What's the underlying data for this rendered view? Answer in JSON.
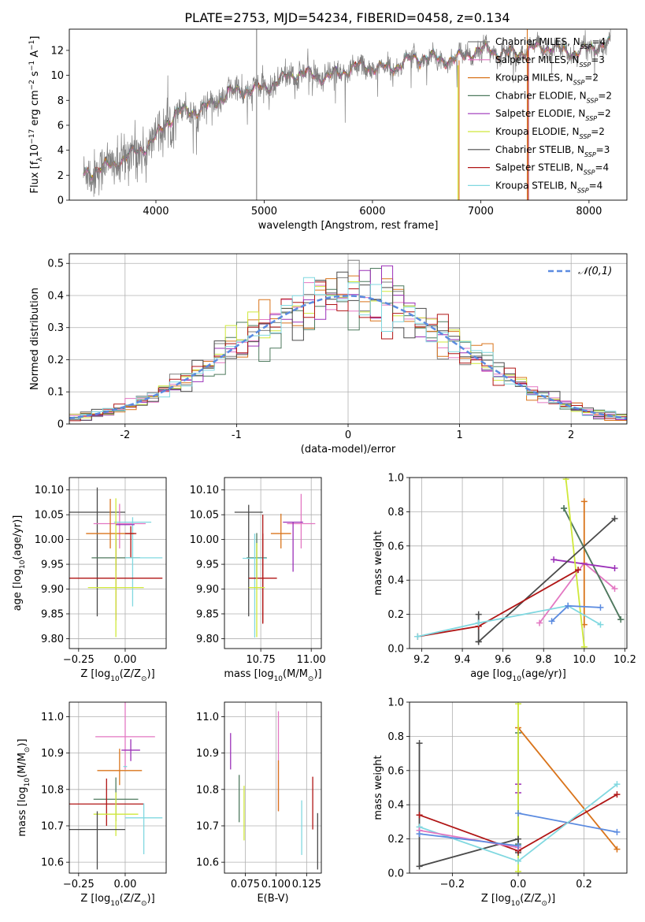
{
  "figure": {
    "title": "PLATE=2753, MJD=54234, FIBERID=0458, z=0.134"
  },
  "models": [
    {
      "name": "Chabrier MILES",
      "nssp": "4",
      "color": "#7f7f7f"
    },
    {
      "name": "Salpeter MILES",
      "nssp": "3",
      "color": "#e377c2"
    },
    {
      "name": "Kroupa MILES",
      "nssp": "2",
      "color": "#d9741b"
    },
    {
      "name": "Chabrier ELODIE",
      "nssp": "2",
      "color": "#4e7a5e"
    },
    {
      "name": "Salpeter ELODIE",
      "nssp": "2",
      "color": "#9b30b8"
    },
    {
      "name": "Kroupa ELODIE",
      "nssp": "2",
      "color": "#cfe83a"
    },
    {
      "name": "Chabrier STELIB",
      "nssp": "3",
      "color": "#4a4a4a"
    },
    {
      "name": "Salpeter STELIB",
      "nssp": "4",
      "color": "#b01515"
    },
    {
      "name": "Kroupa STELIB",
      "nssp": "4",
      "color": "#80d8e0"
    }
  ],
  "nssp_sub": "SSP",
  "chart_data": [
    {
      "id": "spectrum",
      "type": "line",
      "xlabel": "wavelength [Angstrom, rest frame]",
      "ylabel_parts": {
        "pre": "Flux [f",
        "sub": "λ",
        "mid": "10",
        "sup1": "−17",
        "mid2": " erg cm",
        "sup2": "−2",
        "mid3": " s",
        "sup3": "−1",
        "mid4": " A",
        "sup4": "−1",
        "post": "]"
      },
      "xlim": [
        3200,
        8350
      ],
      "ylim": [
        0,
        13.7
      ],
      "xticks": [
        4000,
        5000,
        6000,
        7000,
        8000
      ],
      "yticks": [
        0,
        2,
        4,
        6,
        8,
        10,
        12
      ],
      "spectrum_range": [
        3330,
        8200
      ],
      "continuum_points": [
        [
          3330,
          2.3
        ],
        [
          3600,
          2.5
        ],
        [
          3800,
          4.0
        ],
        [
          4000,
          5.0
        ],
        [
          4200,
          6.8
        ],
        [
          4500,
          7.8
        ],
        [
          4800,
          8.6
        ],
        [
          5000,
          9.3
        ],
        [
          5200,
          9.7
        ],
        [
          5500,
          10.1
        ],
        [
          5800,
          10.3
        ],
        [
          6100,
          10.8
        ],
        [
          6400,
          11.1
        ],
        [
          6700,
          11.5
        ],
        [
          7000,
          11.7
        ],
        [
          7300,
          12.0
        ],
        [
          7600,
          12.0
        ],
        [
          8200,
          12.2
        ]
      ],
      "spike_lines": [
        {
          "x": 4930,
          "y_top": 13.7,
          "model": 0
        },
        {
          "x": 6790,
          "y_top": 10.8,
          "model": 5
        },
        {
          "x": 6800,
          "y_top": 11.2,
          "model": 2
        },
        {
          "x": 7430,
          "y_top": 13.7,
          "model": 2
        },
        {
          "x": 7440,
          "y_top": 12.0,
          "model": 7
        }
      ],
      "grid": false,
      "legend": "upper right"
    },
    {
      "id": "residuals",
      "type": "histogram",
      "xlabel": "(data-model)/error",
      "ylabel": "Normed distribution",
      "xlim": [
        -2.5,
        2.5
      ],
      "ylim": [
        0,
        0.53
      ],
      "xticks": [
        -2,
        -1,
        0,
        1,
        2
      ],
      "yticks": [
        0,
        0.1,
        0.2,
        0.3,
        0.4,
        0.5
      ],
      "bin_width": 0.1,
      "gaussian_label": "𝒩(0,1)",
      "gaussian_color": "#5b8be0",
      "grid": true,
      "legend": "upper right"
    },
    {
      "id": "age_vs_z",
      "type": "errorbar",
      "xlabel_parts": {
        "pre": "Z [log",
        "sub": "10",
        "post": "(Z/Z",
        "sub2": "⊙",
        "post2": ")]"
      },
      "ylabel_parts": {
        "pre": "age  [log",
        "sub": "10",
        "post": "(age/yr)]"
      },
      "xlim": [
        -0.3,
        0.22
      ],
      "ylim": [
        9.78,
        10.125
      ],
      "xticks": [
        -0.25,
        0.0
      ],
      "xtick_labels": [
        "−0.25",
        "0.00"
      ],
      "yticks": [
        9.8,
        9.85,
        9.9,
        9.95,
        10.0,
        10.05,
        10.1
      ],
      "ytick_labels": [
        "9.80",
        "9.85",
        "9.90",
        "9.95",
        "10.00",
        "10.05",
        "10.10"
      ],
      "points": [
        {
          "model": 6,
          "x": -0.15,
          "xerr": 0.15,
          "y": 10.055,
          "yerr": [
            0.21,
            0.05
          ]
        },
        {
          "model": 1,
          "x": -0.03,
          "xerr": 0.14,
          "y": 10.032,
          "yerr": [
            0.05,
            0.04
          ]
        },
        {
          "model": 8,
          "x": 0.04,
          "xerr": 0.1,
          "y": 10.035,
          "yerr": [
            0.17,
            0.01
          ]
        },
        {
          "model": 2,
          "x": -0.08,
          "xerr": 0.13,
          "y": 10.012,
          "yerr": [
            0.03,
            0.07
          ]
        },
        {
          "model": 7,
          "x": 0.03,
          "xerr": 0.03,
          "y": 10.012,
          "yerr": [
            0.05,
            0.015
          ]
        },
        {
          "model": 3,
          "x": -0.05,
          "xerr": 0.13,
          "y": 9.963,
          "yerr": [
            0.025,
            0.04
          ]
        },
        {
          "model": 8,
          "x": 0.1,
          "xerr": 0.1,
          "y": 9.963,
          "yerr": [
            0.0,
            0.0
          ]
        },
        {
          "model": 7,
          "x": -0.05,
          "xerr": 0.25,
          "y": 9.922,
          "yerr": [
            0.085,
            0.09
          ]
        },
        {
          "model": 5,
          "x": -0.05,
          "xerr": 0.15,
          "y": 9.903,
          "yerr": [
            0.1,
            0.18
          ]
        },
        {
          "model": 4,
          "x": 0.0,
          "xerr": 0.05,
          "y": 10.03,
          "yerr": [
            0.0,
            0.0
          ]
        }
      ],
      "grid": true
    },
    {
      "id": "age_vs_mass",
      "type": "errorbar",
      "xlabel_parts": {
        "pre": "mass [log",
        "sub": "10",
        "post": "(M/M",
        "sub2": "⊙",
        "post2": ")]"
      },
      "xlim": [
        10.57,
        11.05
      ],
      "ylim": [
        9.78,
        10.125
      ],
      "xticks": [
        10.75,
        11.0
      ],
      "xtick_labels": [
        "10.75",
        "11.00"
      ],
      "yticks": [
        9.8,
        9.85,
        9.9,
        9.95,
        10.0,
        10.05,
        10.1
      ],
      "ytick_labels": [
        "9.80",
        "9.85",
        "9.90",
        "9.95",
        "10.00",
        "10.05",
        "10.10"
      ],
      "points": [
        {
          "model": 6,
          "x": 10.69,
          "xerr": 0.07,
          "y": 10.055,
          "yerr": [
            0.21,
            0.015
          ]
        },
        {
          "model": 1,
          "x": 10.95,
          "xerr": 0.07,
          "y": 10.032,
          "yerr": [
            0.05,
            0.06
          ]
        },
        {
          "model": 4,
          "x": 10.91,
          "xerr": 0.05,
          "y": 10.035,
          "yerr": [
            0.1,
            0.0
          ]
        },
        {
          "model": 2,
          "x": 10.85,
          "xerr": 0.05,
          "y": 10.012,
          "yerr": [
            0.03,
            0.04
          ]
        },
        {
          "model": 7,
          "x": 10.76,
          "xerr": 0.0,
          "y": 10.0,
          "yerr": [
            0.17,
            0.05
          ]
        },
        {
          "model": 3,
          "x": 10.73,
          "xerr": 0.05,
          "y": 9.963,
          "yerr": [
            0.04,
            0.05
          ]
        },
        {
          "model": 8,
          "x": 10.72,
          "xerr": 0.06,
          "y": 9.962,
          "yerr": [
            0.16,
            0.05
          ]
        },
        {
          "model": 7,
          "x": 10.76,
          "xerr": 0.07,
          "y": 9.922,
          "yerr": [
            0.09,
            0.09
          ]
        },
        {
          "model": 5,
          "x": 10.73,
          "xerr": 0.04,
          "y": 9.903,
          "yerr": [
            0.1,
            0.09
          ]
        }
      ],
      "grid": true
    },
    {
      "id": "weight_vs_age",
      "type": "line",
      "xlabel_parts": {
        "pre": "age  [log",
        "sub": "10",
        "post": "(age/yr)]"
      },
      "ylabel": "mass weight",
      "xlim": [
        9.14,
        10.21
      ],
      "ylim": [
        0,
        1.0
      ],
      "xticks": [
        9.2,
        9.4,
        9.6,
        9.8,
        10.0,
        10.2
      ],
      "xtick_labels": [
        "9.2",
        "9.4",
        "9.6",
        "9.8",
        "10.0",
        "10.2"
      ],
      "yticks": [
        0,
        0.2,
        0.4,
        0.6,
        0.8,
        1.0
      ],
      "ytick_labels": [
        "0.0",
        "0.2",
        "0.4",
        "0.6",
        "0.8",
        "1.0"
      ],
      "series": [
        {
          "model": 0,
          "x": [
            9.9,
            10.18
          ],
          "y": [
            0.82,
            0.17
          ]
        },
        {
          "model": 1,
          "x": [
            9.78,
            10.0,
            10.15
          ],
          "y": [
            0.15,
            0.5,
            0.35
          ]
        },
        {
          "model": 2,
          "x": [
            10.0,
            10.0
          ],
          "y": [
            0.86,
            0.14
          ]
        },
        {
          "model": 3,
          "x": [
            9.9,
            10.18
          ],
          "y": [
            0.82,
            0.17
          ]
        },
        {
          "model": 4,
          "x": [
            9.85,
            10.15
          ],
          "y": [
            0.52,
            0.47
          ]
        },
        {
          "model": 5,
          "x": [
            9.91,
            10.0
          ],
          "y": [
            0.99,
            0.01
          ]
        },
        {
          "model": 6,
          "x": [
            9.48,
            9.48,
            9.48,
            10.15
          ],
          "y": [
            0.2,
            0.04,
            0.04,
            0.76
          ]
        },
        {
          "model": 7,
          "x": [
            9.18,
            9.48,
            9.97
          ],
          "y": [
            0.07,
            0.13,
            0.46
          ]
        },
        {
          "model": 8,
          "x": [
            9.18,
            9.48,
            9.92,
            10.08
          ],
          "y": [
            0.07,
            0.15,
            0.25,
            0.14
          ]
        },
        {
          "model": 9,
          "x": [
            9.84,
            9.92,
            10.08
          ],
          "y": [
            0.16,
            0.25,
            0.24
          ]
        }
      ],
      "grid": true
    },
    {
      "id": "mass_vs_z",
      "type": "errorbar",
      "xlabel_parts": {
        "pre": "Z [log",
        "sub": "10",
        "post": "(Z/Z",
        "sub2": "⊙",
        "post2": ")]"
      },
      "ylabel_parts": {
        "pre": "mass [log",
        "sub": "10",
        "post": "(M/M",
        "sub2": "⊙",
        "post2": ")]"
      },
      "xlim": [
        -0.3,
        0.22
      ],
      "ylim": [
        10.57,
        11.04
      ],
      "xticks": [
        -0.25,
        0.0
      ],
      "xtick_labels": [
        "−0.25",
        "0.00"
      ],
      "yticks": [
        10.6,
        10.7,
        10.8,
        10.9,
        11.0
      ],
      "ytick_labels": [
        "10.6",
        "10.7",
        "10.8",
        "10.9",
        "11.0"
      ],
      "points": [
        {
          "model": 1,
          "x": 0.0,
          "xerr": 0.16,
          "y": 10.945,
          "yerr": [
            0.09,
            0.1
          ]
        },
        {
          "model": 4,
          "x": 0.03,
          "xerr": 0.05,
          "y": 10.908,
          "yerr": [
            0.03,
            0.03
          ]
        },
        {
          "model": 8,
          "x": 0.0,
          "xerr": 0.01,
          "y": 10.863,
          "yerr": [
            0.0,
            0.0
          ]
        },
        {
          "model": 2,
          "x": -0.03,
          "xerr": 0.12,
          "y": 10.852,
          "yerr": [
            0.04,
            0.06
          ]
        },
        {
          "model": 3,
          "x": -0.05,
          "xerr": 0.12,
          "y": 10.773,
          "yerr": [
            0.06,
            0.06
          ]
        },
        {
          "model": 7,
          "x": -0.1,
          "xerr": 0.2,
          "y": 10.76,
          "yerr": [
            0.06,
            0.07
          ]
        },
        {
          "model": 5,
          "x": -0.05,
          "xerr": 0.12,
          "y": 10.732,
          "yerr": [
            0.06,
            0.06
          ]
        },
        {
          "model": 8,
          "x": 0.1,
          "xerr": 0.1,
          "y": 10.722,
          "yerr": [
            0.1,
            0.04
          ]
        },
        {
          "model": 6,
          "x": -0.15,
          "xerr": 0.15,
          "y": 10.69,
          "yerr": [
            0.11,
            0.05
          ]
        }
      ],
      "grid": true
    },
    {
      "id": "mass_vs_ebv",
      "type": "errorbar",
      "xlabel": "E(B-V)",
      "xlim": [
        0.058,
        0.137
      ],
      "ylim": [
        10.57,
        11.04
      ],
      "xticks": [
        0.075,
        0.1,
        0.125
      ],
      "xtick_labels": [
        "0.075",
        "0.100",
        "0.125"
      ],
      "yticks": [
        10.6,
        10.7,
        10.8,
        10.9,
        11.0
      ],
      "ytick_labels": [
        "10.6",
        "10.7",
        "10.8",
        "10.9",
        "11.0"
      ],
      "points": [
        {
          "model": 4,
          "x": 0.063,
          "xerr": 0.0,
          "y": 10.905,
          "yerr": [
            0.05,
            0.05
          ]
        },
        {
          "model": 1,
          "x": 0.102,
          "xerr": 0.0,
          "y": 10.88,
          "yerr": [
            0.14,
            0.135
          ]
        },
        {
          "model": 2,
          "x": 0.102,
          "xerr": 0.0,
          "y": 10.88,
          "yerr": [
            0.14,
            0.0
          ]
        },
        {
          "model": 3,
          "x": 0.07,
          "xerr": 0.0,
          "y": 10.775,
          "yerr": [
            0.065,
            0.065
          ]
        },
        {
          "model": 5,
          "x": 0.074,
          "xerr": 0.0,
          "y": 10.735,
          "yerr": [
            0.075,
            0.075
          ]
        },
        {
          "model": 7,
          "x": 0.13,
          "xerr": 0.0,
          "y": 10.76,
          "yerr": [
            0.07,
            0.075
          ]
        },
        {
          "model": 8,
          "x": 0.121,
          "xerr": 0.0,
          "y": 10.695,
          "yerr": [
            0.075,
            0.075
          ]
        },
        {
          "model": 6,
          "x": 0.134,
          "xerr": 0.0,
          "y": 10.66,
          "yerr": [
            0.08,
            0.075
          ]
        }
      ],
      "grid": true
    },
    {
      "id": "weight_vs_z",
      "type": "line",
      "xlabel_parts": {
        "pre": "Z [log",
        "sub": "10",
        "post": "(Z/Z",
        "sub2": "⊙",
        "post2": ")]"
      },
      "ylabel": "mass weight",
      "xlim": [
        -0.33,
        0.33
      ],
      "ylim": [
        0,
        1.0
      ],
      "xticks": [
        -0.2,
        0.0,
        0.2
      ],
      "xtick_labels": [
        "−0.2",
        "0.0",
        "0.2"
      ],
      "yticks": [
        0,
        0.2,
        0.4,
        0.6,
        0.8,
        1.0
      ],
      "ytick_labels": [
        "0.0",
        "0.2",
        "0.4",
        "0.6",
        "0.8",
        "1.0"
      ],
      "series": [
        {
          "model": 2,
          "x": [
            0.0,
            0.3
          ],
          "y": [
            0.85,
            0.14
          ]
        },
        {
          "model": 3,
          "x": [
            0.0,
            0.0
          ],
          "y": [
            0.82,
            0.17
          ]
        },
        {
          "model": 4,
          "x": [
            0.0,
            0.0
          ],
          "y": [
            0.52,
            0.47
          ]
        },
        {
          "model": 5,
          "x": [
            0.0,
            0.0
          ],
          "y": [
            0.99,
            0.01
          ]
        },
        {
          "model": 9,
          "x": [
            0.0,
            0.3
          ],
          "y": [
            0.35,
            0.24
          ]
        },
        {
          "model": 6,
          "x": [
            -0.3,
            -0.3,
            0.0,
            0.0
          ],
          "y": [
            0.76,
            0.04,
            0.2,
            0.12
          ]
        },
        {
          "model": 7,
          "x": [
            -0.3,
            0.0,
            0.3
          ],
          "y": [
            0.34,
            0.13,
            0.46
          ]
        },
        {
          "model": 8,
          "x": [
            -0.3,
            0.0,
            0.3
          ],
          "y": [
            0.27,
            0.07,
            0.52
          ]
        },
        {
          "model": 1,
          "x": [
            -0.3,
            0.0
          ],
          "y": [
            0.25,
            0.15
          ]
        },
        {
          "model": 9,
          "x": [
            -0.3,
            0.0
          ],
          "y": [
            0.23,
            0.16
          ]
        }
      ],
      "grid": true
    }
  ]
}
